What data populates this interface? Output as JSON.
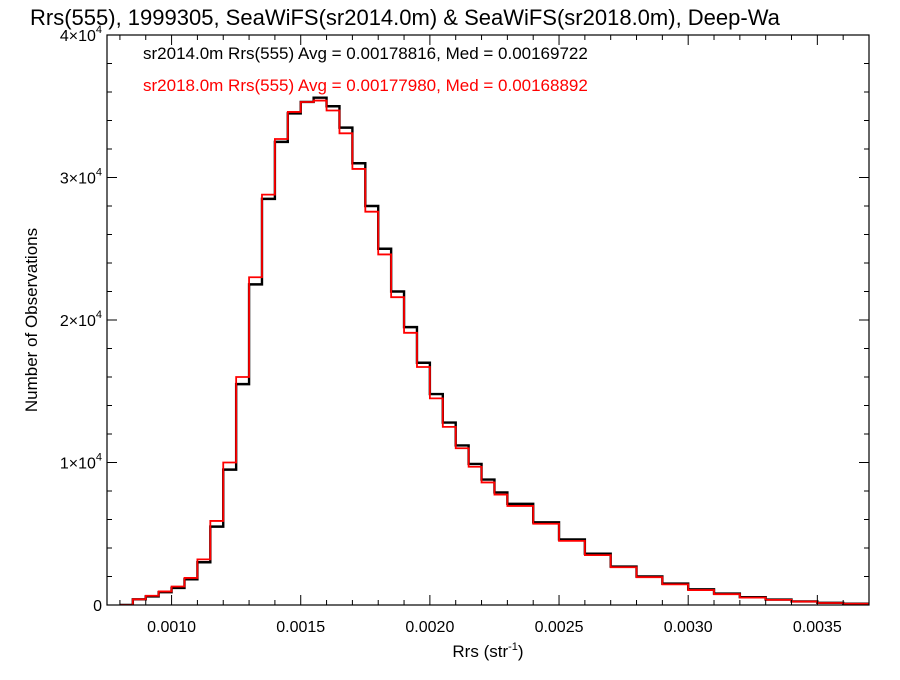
{
  "chart_data": {
    "type": "line",
    "title": "Rrs(555), 1999305, SeaWiFS(sr2014.0m) & SeaWiFS(sr2018.0m), Deep-Wa",
    "xlabel": {
      "base": "Rrs (str",
      "sup": "-1",
      "tail": ")"
    },
    "ylabel": "Number of Observations",
    "xlim": [
      0.00075,
      0.0037
    ],
    "ylim": [
      0,
      40000
    ],
    "x_ticks": [
      {
        "value": 0.001,
        "label": "0.0010"
      },
      {
        "value": 0.0015,
        "label": "0.0015"
      },
      {
        "value": 0.002,
        "label": "0.0020"
      },
      {
        "value": 0.0025,
        "label": "0.0025"
      },
      {
        "value": 0.003,
        "label": "0.0030"
      },
      {
        "value": 0.0035,
        "label": "0.0035"
      }
    ],
    "y_ticks": [
      {
        "value": 0,
        "label": "0",
        "sup": ""
      },
      {
        "value": 10000,
        "label": "1×10",
        "sup": "4"
      },
      {
        "value": 20000,
        "label": "2×10",
        "sup": "4"
      },
      {
        "value": 30000,
        "label": "3×10",
        "sup": "4"
      },
      {
        "value": 40000,
        "label": "4×10",
        "sup": "4"
      }
    ],
    "step_style": "histogram",
    "series": [
      {
        "name": "sr2014.0m",
        "color": "#000000",
        "label": "sr2014.0m Rrs(555) Avg = 0.00178816, Med = 0.00169722",
        "x": [
          0.0008,
          0.00085,
          0.0009,
          0.00095,
          0.001,
          0.00105,
          0.0011,
          0.00115,
          0.0012,
          0.00125,
          0.0013,
          0.00135,
          0.0014,
          0.00145,
          0.0015,
          0.00155,
          0.0016,
          0.00165,
          0.0017,
          0.00175,
          0.0018,
          0.00185,
          0.0019,
          0.00195,
          0.002,
          0.00205,
          0.0021,
          0.00215,
          0.0022,
          0.00225,
          0.0023,
          0.0024,
          0.0025,
          0.0026,
          0.0027,
          0.0028,
          0.0029,
          0.003,
          0.0031,
          0.0032,
          0.0033,
          0.0034,
          0.0035,
          0.0036,
          0.0037
        ],
        "y": [
          0,
          400,
          600,
          900,
          1200,
          1800,
          3000,
          5500,
          9500,
          15500,
          22500,
          28500,
          32500,
          34500,
          35300,
          35600,
          35000,
          33500,
          31000,
          28000,
          25000,
          22000,
          19500,
          17000,
          14800,
          12800,
          11200,
          9900,
          8800,
          7900,
          7100,
          5800,
          4600,
          3600,
          2700,
          2000,
          1500,
          1100,
          800,
          550,
          380,
          250,
          150,
          90,
          50
        ]
      },
      {
        "name": "sr2018.0m",
        "color": "#ff0000",
        "label": "sr2018.0m Rrs(555) Avg = 0.00177980, Med = 0.00168892",
        "x": [
          0.0008,
          0.00085,
          0.0009,
          0.00095,
          0.001,
          0.00105,
          0.0011,
          0.00115,
          0.0012,
          0.00125,
          0.0013,
          0.00135,
          0.0014,
          0.00145,
          0.0015,
          0.00155,
          0.0016,
          0.00165,
          0.0017,
          0.00175,
          0.0018,
          0.00185,
          0.0019,
          0.00195,
          0.002,
          0.00205,
          0.0021,
          0.00215,
          0.0022,
          0.00225,
          0.0023,
          0.0024,
          0.0025,
          0.0026,
          0.0027,
          0.0028,
          0.0029,
          0.003,
          0.0031,
          0.0032,
          0.0033,
          0.0034,
          0.0035,
          0.0036,
          0.0037
        ],
        "y": [
          0,
          400,
          650,
          950,
          1300,
          1900,
          3200,
          5900,
          10000,
          16000,
          23000,
          28800,
          32700,
          34600,
          35300,
          35400,
          34700,
          33100,
          30600,
          27600,
          24600,
          21600,
          19100,
          16700,
          14500,
          12500,
          11000,
          9700,
          8600,
          7750,
          6950,
          5700,
          4500,
          3500,
          2650,
          1950,
          1450,
          1050,
          760,
          520,
          360,
          240,
          140,
          85,
          45
        ]
      }
    ]
  }
}
